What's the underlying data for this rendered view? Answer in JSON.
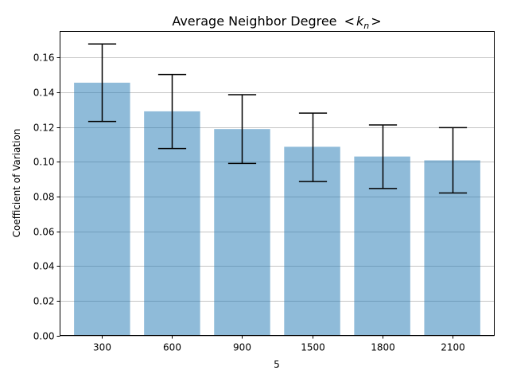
{
  "chart_data": {
    "type": "bar",
    "title": "Average Neighbor Degree  < k_n >",
    "title_parts": {
      "prefix": "Average Neighbor Degree ",
      "lt": "<",
      "k": "k",
      "sub": "n",
      "gt": ">"
    },
    "xlabel": "5",
    "ylabel": "Coefficient of Variation",
    "categories": [
      "300",
      "600",
      "900",
      "1500",
      "1800",
      "2100"
    ],
    "values": [
      0.1455,
      0.129,
      0.1188,
      0.1086,
      0.103,
      0.1008
    ],
    "error_low": [
      0.1232,
      0.1076,
      0.099,
      0.0886,
      0.0846,
      0.082
    ],
    "error_high": [
      0.1678,
      0.1502,
      0.1386,
      0.128,
      0.1212,
      0.1196
    ],
    "ylim": [
      0,
      0.175
    ],
    "yticks": [
      0.0,
      0.02,
      0.04,
      0.06,
      0.08,
      0.1,
      0.12,
      0.14,
      0.16
    ],
    "ytick_labels": [
      "0.00",
      "0.02",
      "0.04",
      "0.06",
      "0.08",
      "0.10",
      "0.12",
      "0.14",
      "0.16"
    ],
    "grid": "y-major",
    "bar_color": "#1f77b4",
    "bar_alpha": 0.5,
    "error_color": "#000000",
    "grid_color": "#b0b0b0"
  }
}
